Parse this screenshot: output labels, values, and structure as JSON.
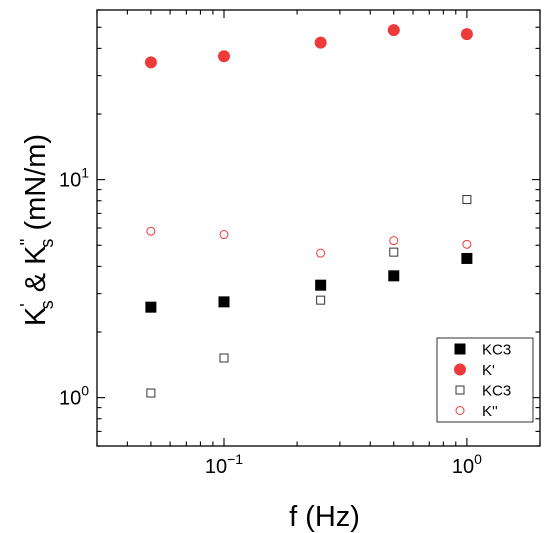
{
  "chart_data": {
    "type": "scatter",
    "title": "",
    "xlabel": "f (Hz)",
    "ylabel": {
      "main": "K",
      "sub": "s",
      "prime1": "'",
      "amp": " & K",
      "prime2": "''",
      "sub2": "s",
      "unit": " (mN/m)"
    },
    "xscale": "log",
    "yscale": "log",
    "xlim": [
      0.03,
      2.0
    ],
    "ylim": [
      0.6,
      60
    ],
    "grid": false,
    "legend_position": "bottom-right",
    "x_ticks": [
      {
        "value": 0.1,
        "base": "10",
        "exp": "−1"
      },
      {
        "value": 1.0,
        "base": "10",
        "exp": "0"
      }
    ],
    "y_ticks": [
      {
        "value": 1,
        "base": "10",
        "exp": "0"
      },
      {
        "value": 10,
        "base": "10",
        "exp": "1"
      }
    ],
    "series": [
      {
        "name": "KC3",
        "marker": "square",
        "filled": true,
        "color": "#000000",
        "x": [
          0.05,
          0.1,
          0.25,
          0.5,
          1.0
        ],
        "y": [
          2.6,
          2.75,
          3.28,
          3.62,
          4.35
        ]
      },
      {
        "name": "K'",
        "marker": "circle",
        "filled": true,
        "color": "#ee3a3a",
        "x": [
          0.05,
          0.1,
          0.25,
          0.5,
          1.0
        ],
        "y": [
          34.5,
          36.8,
          42.5,
          48.5,
          46.5
        ]
      },
      {
        "name": "KC3",
        "marker": "square",
        "filled": false,
        "color": "#333333",
        "x": [
          0.05,
          0.1,
          0.25,
          0.5,
          1.0
        ],
        "y": [
          1.05,
          1.52,
          2.8,
          4.65,
          8.1
        ]
      },
      {
        "name": "K''",
        "marker": "circle",
        "filled": false,
        "color": "#ee3a3a",
        "x": [
          0.05,
          0.1,
          0.25,
          0.5,
          1.0
        ],
        "y": [
          5.8,
          5.6,
          4.6,
          5.25,
          5.05
        ]
      }
    ]
  }
}
